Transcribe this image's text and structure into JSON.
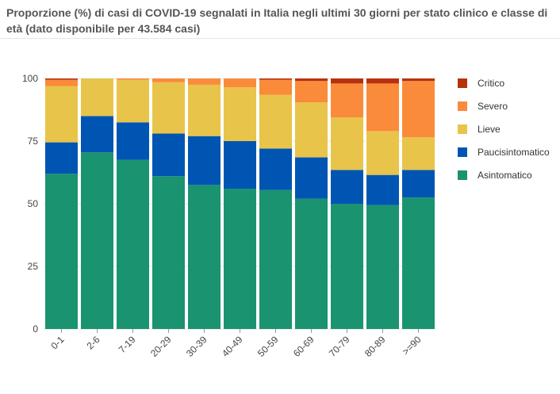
{
  "title": "Proporzione (%) di casi di COVID-19 segnalati in Italia negli ultimi 30 giorni per stato clinico e classe di età (dato disponibile per 43.584 casi)",
  "chart_data": {
    "type": "bar",
    "stacked": true,
    "categories": [
      "0-1",
      "2-6",
      "7-19",
      "20-29",
      "30-39",
      "40-49",
      "50-59",
      "60-69",
      "70-79",
      "80-89",
      ">=90"
    ],
    "ylim": [
      0,
      100
    ],
    "yticks": [
      0,
      25,
      50,
      75,
      100
    ],
    "legend_position": "right",
    "series": [
      {
        "name": "Asintomatico",
        "color": "#1a9370",
        "values": [
          62,
          70.5,
          67.5,
          61,
          57.5,
          56,
          55.5,
          52,
          50,
          49.5,
          52.5
        ]
      },
      {
        "name": "Paucisintomatico",
        "color": "#0055b3",
        "values": [
          12.5,
          14.5,
          15,
          17,
          19.5,
          19,
          16.5,
          16.5,
          13.5,
          12,
          11
        ]
      },
      {
        "name": "Lieve",
        "color": "#e8c44a",
        "values": [
          22.5,
          15,
          17,
          20.5,
          20.5,
          21.5,
          21.5,
          22,
          21,
          17.5,
          13
        ]
      },
      {
        "name": "Severo",
        "color": "#fa8b3a",
        "values": [
          2.5,
          0,
          0.5,
          1.5,
          2.5,
          3.5,
          6,
          8.5,
          13.5,
          19,
          22.5
        ]
      },
      {
        "name": "Critico",
        "color": "#b8310d",
        "values": [
          0.5,
          0,
          0,
          0,
          0,
          0,
          0.5,
          1,
          2,
          2,
          1
        ]
      }
    ],
    "legend_order": [
      "Critico",
      "Severo",
      "Lieve",
      "Paucisintomatico",
      "Asintomatico"
    ]
  }
}
